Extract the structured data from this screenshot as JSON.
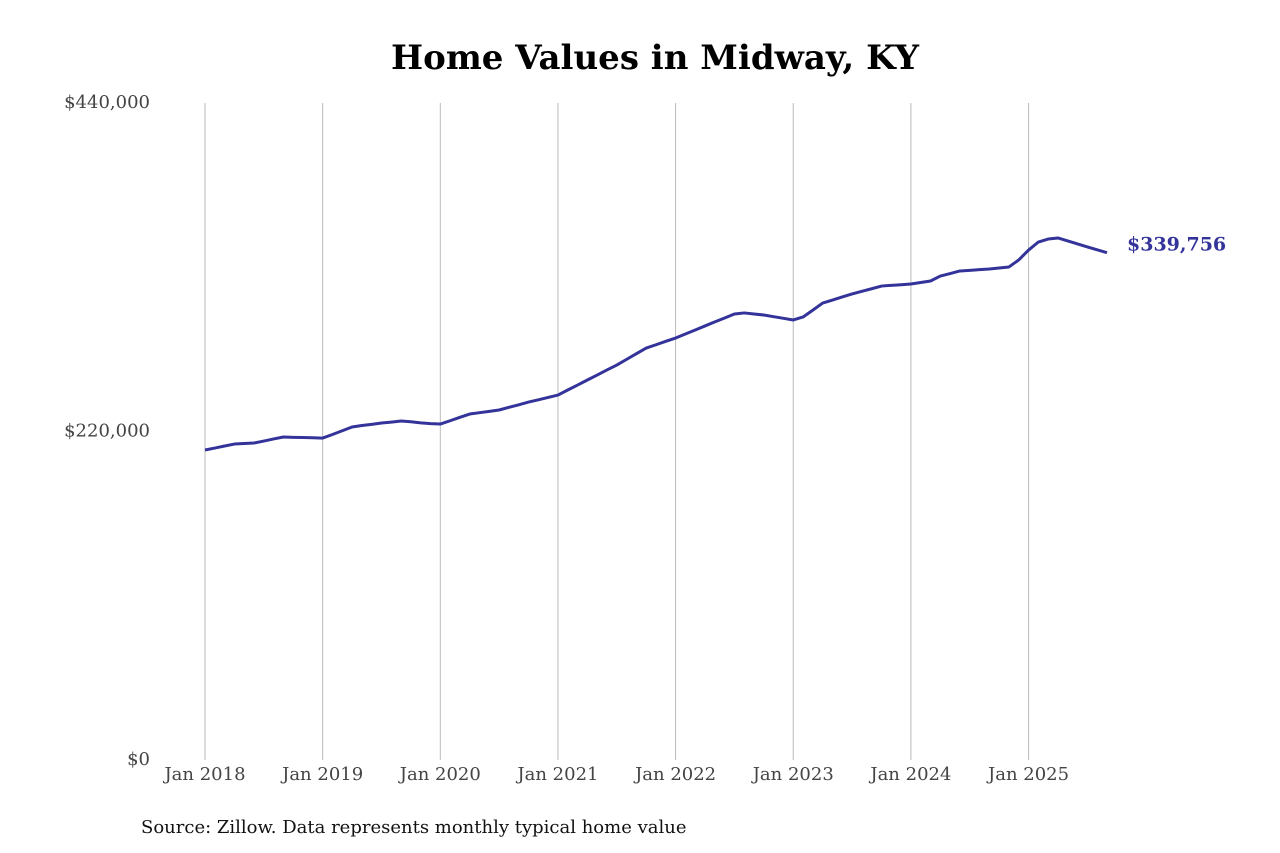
{
  "chart_data": {
    "type": "line",
    "title": "Home Values in Midway, KY",
    "source": "Source: Zillow. Data represents monthly typical home value",
    "x": [
      "2018-01",
      "2018-02",
      "2018-03",
      "2018-04",
      "2018-05",
      "2018-06",
      "2018-07",
      "2018-08",
      "2018-09",
      "2018-10",
      "2018-11",
      "2018-12",
      "2019-01",
      "2019-02",
      "2019-03",
      "2019-04",
      "2019-05",
      "2019-06",
      "2019-07",
      "2019-08",
      "2019-09",
      "2019-10",
      "2019-11",
      "2019-12",
      "2020-01",
      "2020-02",
      "2020-03",
      "2020-04",
      "2020-05",
      "2020-06",
      "2020-07",
      "2020-08",
      "2020-09",
      "2020-10",
      "2020-11",
      "2020-12",
      "2021-01",
      "2021-02",
      "2021-03",
      "2021-04",
      "2021-05",
      "2021-06",
      "2021-07",
      "2021-08",
      "2021-09",
      "2021-10",
      "2021-11",
      "2021-12",
      "2022-01",
      "2022-02",
      "2022-03",
      "2022-04",
      "2022-05",
      "2022-06",
      "2022-07",
      "2022-08",
      "2022-09",
      "2022-10",
      "2022-11",
      "2022-12",
      "2023-01",
      "2023-02",
      "2023-03",
      "2023-04",
      "2023-05",
      "2023-06",
      "2023-07",
      "2023-08",
      "2023-09",
      "2023-10",
      "2023-11",
      "2023-12",
      "2024-01",
      "2024-02",
      "2024-03",
      "2024-04",
      "2024-05",
      "2024-06",
      "2024-07",
      "2024-08",
      "2024-09",
      "2024-10",
      "2024-11",
      "2024-12",
      "2025-01",
      "2025-02",
      "2025-03",
      "2025-04",
      "2025-05",
      "2025-06",
      "2025-07",
      "2025-08",
      "2025-09"
    ],
    "series": [
      {
        "name": "Typical home value",
        "color": "#33339a",
        "end_label": "$339,756",
        "values": [
          207600,
          208900,
          210300,
          211600,
          212000,
          212300,
          213600,
          215000,
          216300,
          216100,
          216000,
          215800,
          215600,
          218000,
          220500,
          223000,
          224000,
          224800,
          225700,
          226300,
          227000,
          226500,
          225800,
          225300,
          225000,
          227200,
          229500,
          231700,
          232600,
          233500,
          234400,
          236200,
          237900,
          239700,
          241200,
          242800,
          244400,
          247800,
          251100,
          254500,
          257800,
          261200,
          264500,
          268300,
          272100,
          275900,
          278100,
          280400,
          282600,
          285300,
          288000,
          290700,
          293400,
          296000,
          298700,
          299400,
          298700,
          298000,
          296900,
          295800,
          294700,
          296700,
          301300,
          306000,
          308000,
          310100,
          312100,
          313900,
          315600,
          317400,
          317900,
          318300,
          318800,
          319800,
          320800,
          324100,
          325800,
          327500,
          327900,
          328400,
          328800,
          329500,
          330200,
          334900,
          341500,
          346900,
          348900,
          349600,
          347600,
          345600,
          343600,
          341700,
          339756
        ]
      }
    ],
    "xlim": [
      "2018-01",
      "2025-09"
    ],
    "xticks": [
      {
        "value": "2018-01",
        "label": "Jan 2018"
      },
      {
        "value": "2019-01",
        "label": "Jan 2019"
      },
      {
        "value": "2020-01",
        "label": "Jan 2020"
      },
      {
        "value": "2021-01",
        "label": "Jan 2021"
      },
      {
        "value": "2022-01",
        "label": "Jan 2022"
      },
      {
        "value": "2023-01",
        "label": "Jan 2023"
      },
      {
        "value": "2024-01",
        "label": "Jan 2024"
      },
      {
        "value": "2025-01",
        "label": "Jan 2025"
      }
    ],
    "ylim": [
      0,
      440000
    ],
    "yticks": [
      {
        "value": 0,
        "label": "$0"
      },
      {
        "value": 220000,
        "label": "$220,000"
      },
      {
        "value": 440000,
        "label": "$440,000"
      }
    ],
    "grid": "x"
  }
}
